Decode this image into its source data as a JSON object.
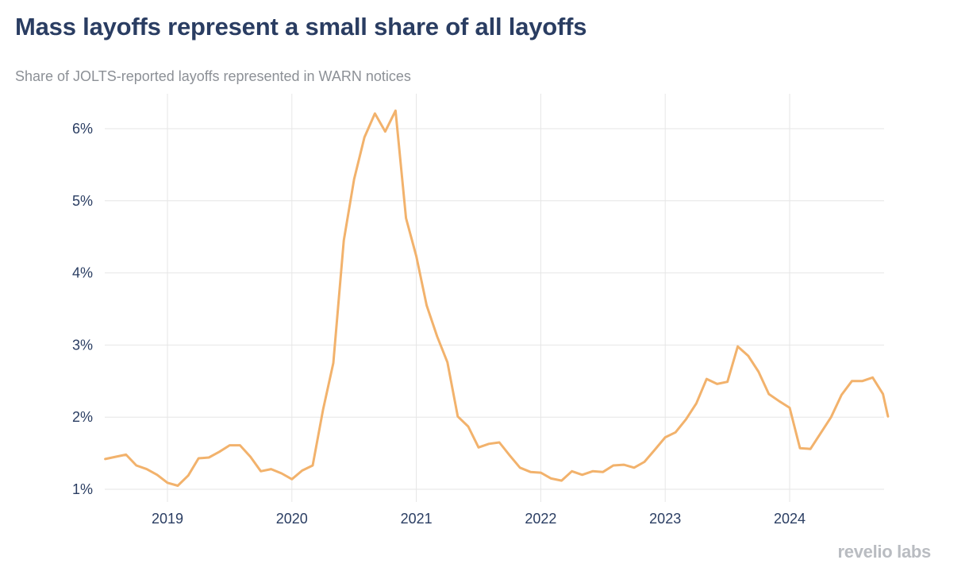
{
  "header": {
    "title": "Mass layoffs represent a small share of all layoffs",
    "subtitle": "Share of JOLTS-reported layoffs represented in WARN notices"
  },
  "brand": {
    "logo_text": "revelio labs"
  },
  "colors": {
    "line": "#f2b26c",
    "grid": "#e6e6e6",
    "text": "#2a3d62"
  },
  "chart_data": {
    "type": "line",
    "title": "Mass layoffs represent a small share of all layoffs",
    "subtitle": "Share of JOLTS-reported layoffs represented in WARN notices",
    "xlabel": "",
    "ylabel": "",
    "x_unit": "year",
    "xlim": [
      2018.5,
      2024.79
    ],
    "ylim": [
      0.9,
      6.6
    ],
    "x_ticks": [
      2019,
      2020,
      2021,
      2022,
      2023,
      2024
    ],
    "x_tick_labels": [
      "2019",
      "2020",
      "2021",
      "2022",
      "2023",
      "2024"
    ],
    "y_ticks": [
      1,
      2,
      3,
      4,
      5,
      6
    ],
    "y_tick_labels": [
      "1%",
      "2%",
      "3%",
      "4%",
      "5%",
      "6%"
    ],
    "grid": true,
    "series": [
      {
        "name": "WARN share of JOLTS layoffs",
        "x": [
          2018.5,
          2018.583,
          2018.667,
          2018.75,
          2018.833,
          2018.917,
          2019.0,
          2019.083,
          2019.167,
          2019.25,
          2019.333,
          2019.417,
          2019.5,
          2019.583,
          2019.667,
          2019.75,
          2019.833,
          2019.917,
          2020.0,
          2020.083,
          2020.167,
          2020.25,
          2020.333,
          2020.417,
          2020.5,
          2020.583,
          2020.667,
          2020.75,
          2020.833,
          2020.917,
          2021.0,
          2021.083,
          2021.167,
          2021.25,
          2021.333,
          2021.417,
          2021.5,
          2021.583,
          2021.667,
          2021.75,
          2021.833,
          2021.917,
          2022.0,
          2022.083,
          2022.167,
          2022.25,
          2022.333,
          2022.417,
          2022.5,
          2022.583,
          2022.667,
          2022.75,
          2022.833,
          2022.917,
          2023.0,
          2023.083,
          2023.167,
          2023.25,
          2023.333,
          2023.417,
          2023.5,
          2023.583,
          2023.667,
          2023.75,
          2023.833,
          2023.917,
          2024.0,
          2024.083,
          2024.167,
          2024.25,
          2024.333,
          2024.417,
          2024.5,
          2024.583,
          2024.667,
          2024.75,
          2024.79
        ],
        "values": [
          1.42,
          1.45,
          1.48,
          1.33,
          1.28,
          1.2,
          1.09,
          1.05,
          1.19,
          1.43,
          1.44,
          1.52,
          1.61,
          1.61,
          1.45,
          1.25,
          1.28,
          1.22,
          1.14,
          1.26,
          1.33,
          2.1,
          2.75,
          4.45,
          5.3,
          5.88,
          6.21,
          5.96,
          6.25,
          4.76,
          4.23,
          3.55,
          3.12,
          2.76,
          2.01,
          1.87,
          1.58,
          1.63,
          1.65,
          1.47,
          1.3,
          1.24,
          1.23,
          1.15,
          1.12,
          1.25,
          1.2,
          1.25,
          1.24,
          1.33,
          1.34,
          1.3,
          1.38,
          1.55,
          1.72,
          1.79,
          1.97,
          2.19,
          2.53,
          2.46,
          2.49,
          2.98,
          2.85,
          2.63,
          2.32,
          2.22,
          2.13,
          1.57,
          1.56,
          1.78,
          2.0,
          2.31,
          2.5,
          2.5,
          2.55,
          2.32,
          2.01
        ]
      }
    ]
  }
}
